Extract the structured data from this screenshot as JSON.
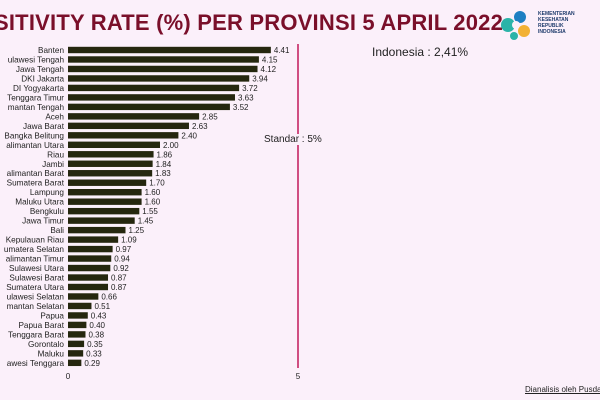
{
  "header": {
    "title": "SITIVITY RATE (%) PER PROVINSI 5 APRIL 2022"
  },
  "logo": {
    "name": "kemenkes-logo-icon",
    "lines": [
      "KEMENTERIAN",
      "KESEHATAN",
      "REPUBLIK",
      "INDONESIA"
    ]
  },
  "annotations": {
    "indonesia": "Indonesia : 2,41%",
    "standard": "Standar : 5%"
  },
  "footer": {
    "credit": "Dianalisis oleh Pusda"
  },
  "colors": {
    "bar": "#25270f",
    "standard_line": "#c2185b",
    "title": "#7a0f2a",
    "background": "#fbf0fa"
  },
  "chart_data": {
    "type": "bar",
    "orientation": "horizontal",
    "categories": [
      "Banten",
      "ulawesi Tengah",
      "Jawa Tengah",
      "DKI Jakarta",
      "DI Yogyakarta",
      "Tenggara Timur",
      "mantan Tengah",
      "Aceh",
      "Jawa Barat",
      "Bangka Belitung",
      "alimantan Utara",
      "Riau",
      "Jambi",
      "alimantan Barat",
      "Sumatera Barat",
      "Lampung",
      "Maluku Utara",
      "Bengkulu",
      "Jawa Timur",
      "Bali",
      "Kepulauan Riau",
      "umatera Selatan",
      "alimantan Timur",
      "Sulawesi Utara",
      "Sulawesi Barat",
      "Sumatera Utara",
      "ulawesi Selatan",
      "mantan Selatan",
      "Papua",
      "Papua Barat",
      "Tenggara Barat",
      "Gorontalo",
      "Maluku",
      "awesi Tenggara"
    ],
    "values": [
      4.41,
      4.15,
      4.12,
      3.94,
      3.72,
      3.63,
      3.52,
      2.85,
      2.63,
      2.4,
      2.0,
      1.86,
      1.84,
      1.83,
      1.7,
      1.6,
      1.6,
      1.55,
      1.45,
      1.25,
      1.09,
      0.97,
      0.94,
      0.92,
      0.87,
      0.87,
      0.66,
      0.51,
      0.43,
      0.4,
      0.38,
      0.35,
      0.33,
      0.29
    ],
    "value_labels": [
      "4.41",
      "4.15",
      "4.12",
      "3.94",
      "3.72",
      "3.63",
      "3.52",
      "2.85",
      "2.63",
      "2.40",
      "2.00",
      "1.86",
      "1.84",
      "1.83",
      "1.70",
      "1.60",
      "1.60",
      "1.55",
      "1.45",
      "1.25",
      "1.09",
      "0.97",
      "0.94",
      "0.92",
      "0.87",
      "0.87",
      "0.66",
      "0.51",
      "0.43",
      "0.40",
      "0.38",
      "0.35",
      "0.33",
      "0.29"
    ],
    "xlim": [
      0,
      5
    ],
    "xticks": [
      "0",
      "5"
    ],
    "reference_line": 5,
    "grid": false
  }
}
